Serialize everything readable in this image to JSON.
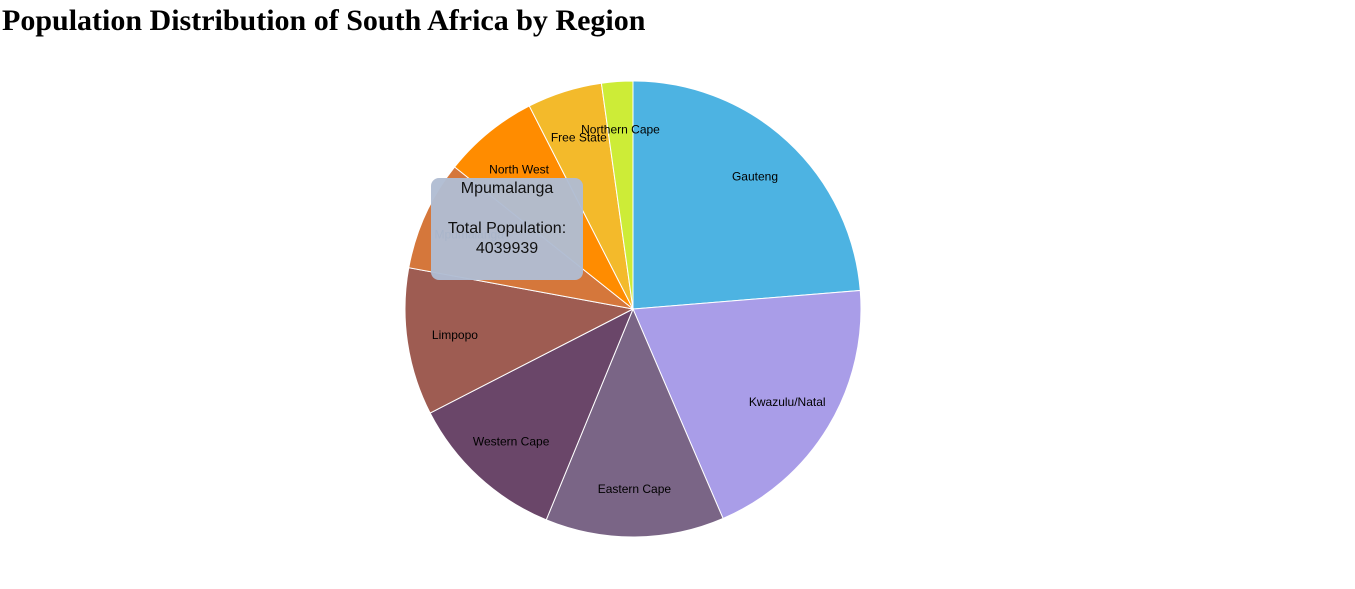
{
  "page": {
    "title": "Population Distribution of South Africa by Region"
  },
  "chart_data": {
    "type": "pie",
    "title": "Population Distribution of South Africa by Region",
    "slices": [
      {
        "label": "Gauteng",
        "value": 12272263,
        "color": "#4db3e2"
      },
      {
        "label": "Kwazulu/Natal",
        "value": 10267300,
        "color": "#a99de8"
      },
      {
        "label": "Eastern Cape",
        "value": 6562053,
        "color": "#7a6586"
      },
      {
        "label": "Western Cape",
        "value": 5822734,
        "color": "#6a4669"
      },
      {
        "label": "Limpopo",
        "value": 5404868,
        "color": "#9e5c52"
      },
      {
        "label": "Mpumalanga",
        "value": 4039939,
        "color": "#d5773b"
      },
      {
        "label": "North West",
        "value": 3509953,
        "color": "#ff8c00"
      },
      {
        "label": "Free State",
        "value": 2745590,
        "color": "#f3ba2b"
      },
      {
        "label": "Northern Cape",
        "value": 1145861,
        "color": "#cdec37"
      }
    ],
    "start": "12 o'clock",
    "direction": "clockwise",
    "slice_border_color": "#ffffff"
  },
  "tooltip": {
    "region": "Mpumalanga",
    "label": "Total Population:",
    "value": "4039939"
  }
}
